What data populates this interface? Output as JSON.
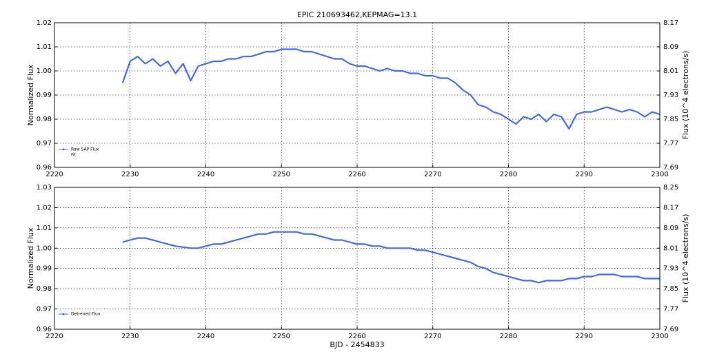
{
  "chart_data": [
    {
      "type": "line",
      "title": "EPIC 210693462,KEPMAG=13.1",
      "ylabel": "Normalized Flux",
      "y2label": "Flux (10^4 electrons/s)",
      "xlim": [
        2220,
        2300
      ],
      "xticks": [
        2220,
        2230,
        2240,
        2250,
        2260,
        2270,
        2280,
        2290,
        2300
      ],
      "ylim": [
        0.96,
        1.02
      ],
      "yticks": [
        0.96,
        0.97,
        0.98,
        0.99,
        {
          "value": 1.0,
          "label": "1.00"
        },
        1.01,
        1.02
      ],
      "y2lim": [
        7.69,
        8.17
      ],
      "y2ticks": [
        7.69,
        7.77,
        7.85,
        7.93,
        8.01,
        8.09,
        8.17
      ],
      "grid": true,
      "legend_position": "lower left",
      "legend": [
        "Raw SAP Flux",
        "Fit"
      ],
      "x": [
        2229,
        2230,
        2231,
        2232,
        2233,
        2234,
        2235,
        2236,
        2237,
        2238,
        2239,
        2240,
        2241,
        2242,
        2243,
        2244,
        2245,
        2246,
        2247,
        2248,
        2249,
        2250,
        2251,
        2252,
        2253,
        2254,
        2255,
        2256,
        2257,
        2258,
        2259,
        2260,
        2261,
        2262,
        2263,
        2264,
        2265,
        2266,
        2267,
        2268,
        2269,
        2270,
        2271,
        2272,
        2273,
        2274,
        2275,
        2276,
        2277,
        2278,
        2279,
        2280,
        2281,
        2282,
        2283,
        2284,
        2285,
        2286,
        2287,
        2288,
        2289,
        2290,
        2291,
        2292,
        2293,
        2294,
        2295,
        2296,
        2297,
        2298,
        2299,
        2300
      ],
      "series": [
        {
          "name": "Raw SAP Flux",
          "color": "#4169e1",
          "values": [
            0.995,
            1.004,
            1.006,
            1.003,
            1.005,
            1.002,
            1.004,
            0.999,
            1.003,
            0.996,
            1.002,
            1.003,
            1.004,
            1.004,
            1.005,
            1.005,
            1.006,
            1.006,
            1.007,
            1.008,
            1.008,
            1.009,
            1.009,
            1.009,
            1.008,
            1.008,
            1.007,
            1.006,
            1.005,
            1.005,
            1.003,
            1.002,
            1.002,
            1.001,
            1.0,
            1.001,
            1.0,
            1.0,
            0.999,
            0.999,
            0.998,
            0.998,
            0.997,
            0.997,
            0.995,
            0.992,
            0.99,
            0.986,
            0.985,
            0.983,
            0.982,
            0.98,
            0.978,
            0.981,
            0.98,
            0.982,
            0.979,
            0.982,
            0.981,
            0.976,
            0.982,
            0.983,
            0.983,
            0.984,
            0.985,
            0.984,
            0.983,
            0.984,
            0.983,
            0.981,
            0.983,
            0.982
          ]
        }
      ]
    },
    {
      "type": "line",
      "ylabel": "Normalized Flux",
      "y2label": "Flux (10^4 electrons/s)",
      "xlabel": "BJD - 2454833",
      "xlim": [
        2220,
        2300
      ],
      "xticks": [
        2220,
        2230,
        2240,
        2250,
        2260,
        2270,
        2280,
        2290,
        2300
      ],
      "ylim": [
        0.96,
        1.03
      ],
      "yticks": [
        0.96,
        0.97,
        0.98,
        0.99,
        {
          "value": 1.0,
          "label": "1.00"
        },
        1.01,
        1.02,
        1.03
      ],
      "y2lim": [
        7.69,
        8.25
      ],
      "y2ticks": [
        7.69,
        7.77,
        7.85,
        7.93,
        8.01,
        8.09,
        8.17,
        8.25
      ],
      "grid": true,
      "legend_position": "lower left",
      "legend": [
        "Detrened Flux"
      ],
      "x": [
        2229,
        2230,
        2231,
        2232,
        2233,
        2234,
        2235,
        2236,
        2237,
        2238,
        2239,
        2240,
        2241,
        2242,
        2243,
        2244,
        2245,
        2246,
        2247,
        2248,
        2249,
        2250,
        2251,
        2252,
        2253,
        2254,
        2255,
        2256,
        2257,
        2258,
        2259,
        2260,
        2261,
        2262,
        2263,
        2264,
        2265,
        2266,
        2267,
        2268,
        2269,
        2270,
        2271,
        2272,
        2273,
        2274,
        2275,
        2276,
        2277,
        2278,
        2279,
        2280,
        2281,
        2282,
        2283,
        2284,
        2285,
        2286,
        2287,
        2288,
        2289,
        2290,
        2291,
        2292,
        2293,
        2294,
        2295,
        2296,
        2297,
        2298,
        2299,
        2300
      ],
      "series": [
        {
          "name": "Detrened Flux",
          "color": "#4169e1",
          "values": [
            1.003,
            1.004,
            1.005,
            1.005,
            1.004,
            1.003,
            1.002,
            1.001,
            1.0005,
            1.0,
            1.0,
            1.001,
            1.002,
            1.002,
            1.003,
            1.004,
            1.005,
            1.006,
            1.007,
            1.007,
            1.008,
            1.008,
            1.008,
            1.008,
            1.007,
            1.007,
            1.006,
            1.005,
            1.004,
            1.004,
            1.003,
            1.002,
            1.002,
            1.001,
            1.001,
            1.0,
            1.0,
            1.0,
            1.0,
            0.999,
            0.999,
            0.998,
            0.997,
            0.996,
            0.995,
            0.994,
            0.993,
            0.991,
            0.99,
            0.988,
            0.987,
            0.986,
            0.985,
            0.984,
            0.984,
            0.983,
            0.984,
            0.984,
            0.984,
            0.985,
            0.985,
            0.986,
            0.986,
            0.987,
            0.987,
            0.987,
            0.986,
            0.986,
            0.986,
            0.985,
            0.985,
            0.985
          ]
        }
      ]
    }
  ]
}
